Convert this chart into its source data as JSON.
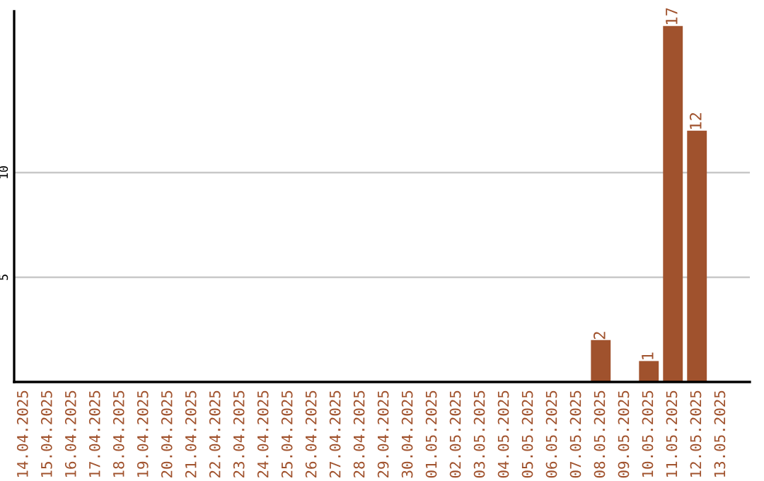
{
  "chart_data": {
    "type": "bar",
    "categories": [
      "14.04.2025",
      "15.04.2025",
      "16.04.2025",
      "17.04.2025",
      "18.04.2025",
      "19.04.2025",
      "20.04.2025",
      "21.04.2025",
      "22.04.2025",
      "23.04.2025",
      "24.04.2025",
      "25.04.2025",
      "26.04.2025",
      "27.04.2025",
      "28.04.2025",
      "29.04.2025",
      "30.04.2025",
      "01.05.2025",
      "02.05.2025",
      "03.05.2025",
      "04.05.2025",
      "05.05.2025",
      "06.05.2025",
      "07.05.2025",
      "08.05.2025",
      "09.05.2025",
      "10.05.2025",
      "11.05.2025",
      "12.05.2025",
      "13.05.2025"
    ],
    "values": [
      0,
      0,
      0,
      0,
      0,
      0,
      0,
      0,
      0,
      0,
      0,
      0,
      0,
      0,
      0,
      0,
      0,
      0,
      0,
      0,
      0,
      0,
      0,
      0,
      2,
      0,
      1,
      17,
      12,
      0
    ],
    "value_labels": [
      null,
      null,
      null,
      null,
      null,
      null,
      null,
      null,
      null,
      null,
      null,
      null,
      null,
      null,
      null,
      null,
      null,
      null,
      null,
      null,
      null,
      null,
      null,
      null,
      "2",
      null,
      "1",
      "17",
      "12",
      null
    ],
    "color": "#a0522d",
    "ylim": [
      0,
      17.7
    ],
    "yticks": [
      5,
      10
    ],
    "grid": "y"
  }
}
